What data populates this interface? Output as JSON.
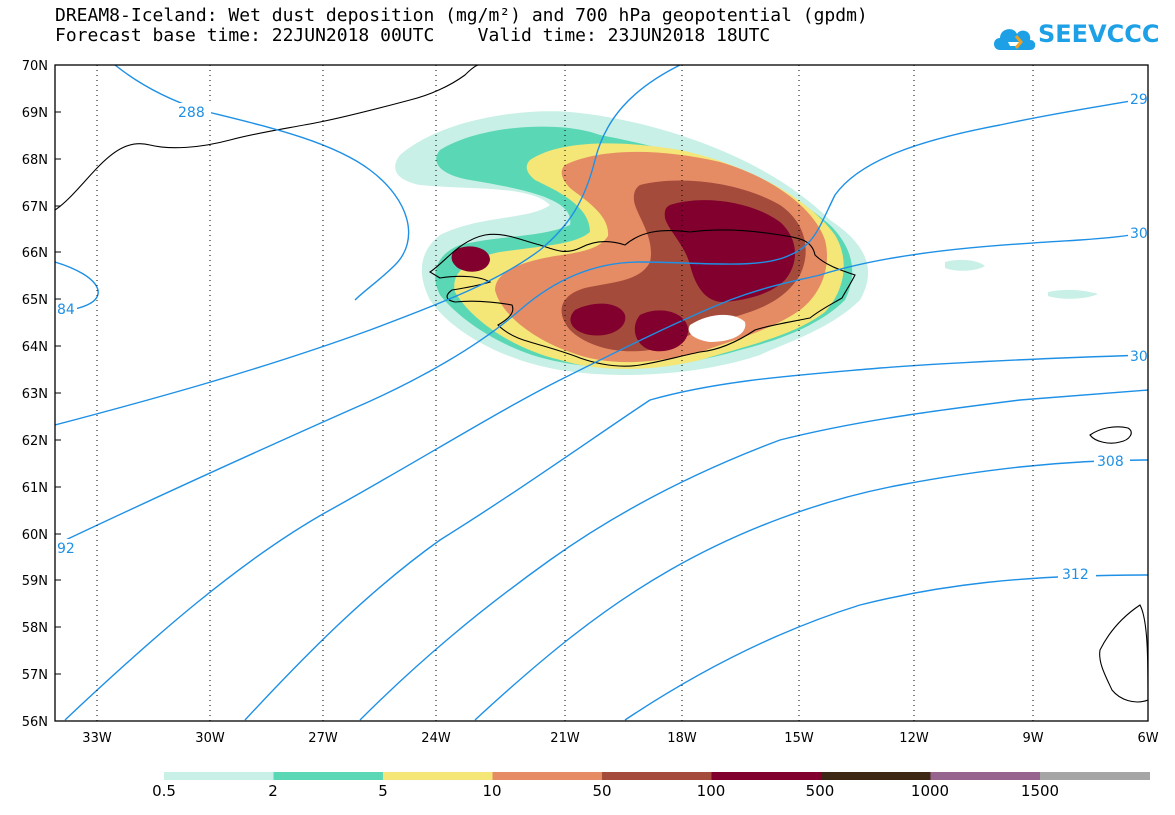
{
  "title": {
    "line1": "DREAM8-Iceland: Wet dust deposition (mg/m²) and 700 hPa geopotential (gpdm)",
    "line2": "Forecast base time: 22JUN2018 00UTC    Valid time: 23JUN2018 18UTC"
  },
  "logo": {
    "text": "SEEVCCC",
    "icon": "cloud-icon"
  },
  "map": {
    "lat_labels": [
      "70N",
      "69N",
      "68N",
      "67N",
      "66N",
      "65N",
      "64N",
      "63N",
      "62N",
      "61N",
      "60N",
      "59N",
      "58N",
      "57N",
      "56N"
    ],
    "lon_labels": [
      "33W",
      "30W",
      "27W",
      "24W",
      "21W",
      "18W",
      "15W",
      "12W",
      "9W",
      "6W"
    ],
    "contour_color": "#1e90e6",
    "contour_labels": [
      "288",
      "84",
      "92",
      "29",
      "30",
      "30",
      "308",
      "312"
    ]
  },
  "legend": {
    "colors": [
      "#c8f0e6",
      "#5ad7b4",
      "#f5e678",
      "#e68c64",
      "#a54b3c",
      "#82002d",
      "#3c2814",
      "#96648c",
      "#a5a5a5"
    ],
    "labels": [
      "0.5",
      "2",
      "5",
      "10",
      "50",
      "100",
      "500",
      "1000",
      "1500"
    ]
  }
}
